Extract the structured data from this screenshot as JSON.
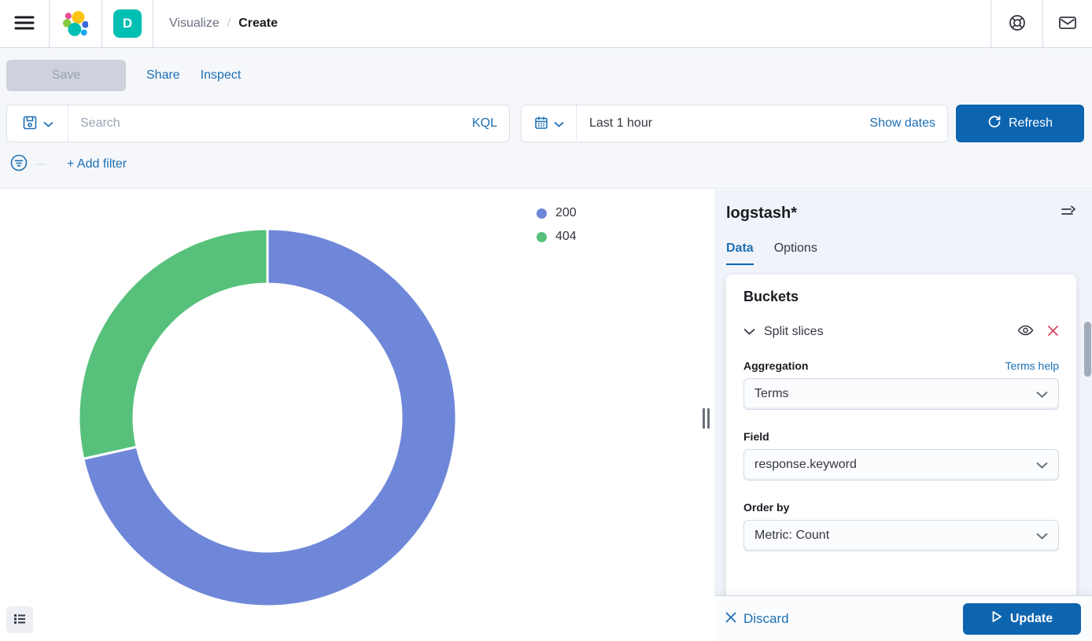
{
  "header": {
    "space_badge": "D",
    "breadcrumb": {
      "section": "Visualize",
      "separator": "/",
      "current": "Create"
    }
  },
  "toolbar": {
    "save_label": "Save",
    "share_label": "Share",
    "inspect_label": "Inspect"
  },
  "query_bar": {
    "search_placeholder": "Search",
    "kql_label": "KQL",
    "time_range": "Last 1 hour",
    "show_dates_label": "Show dates",
    "refresh_label": "Refresh"
  },
  "filter_bar": {
    "dash": "—",
    "add_filter_label": "+ Add filter"
  },
  "chart_data": {
    "type": "pie",
    "subtype": "donut",
    "title": "",
    "series": [
      {
        "label": "200",
        "value": 71.5,
        "color": "#6f87d8"
      },
      {
        "label": "404",
        "value": 28.5,
        "color": "#57c17b"
      }
    ],
    "values_unit": "percent of total (estimated from arc angles; counts not displayed)",
    "start_angle_deg": 0,
    "direction": "clockwise",
    "donut_hole_ratio": 0.71,
    "legend_position": "top-right"
  },
  "panel": {
    "index_pattern": "logstash*",
    "tabs": [
      {
        "label": "Data",
        "active": true
      },
      {
        "label": "Options",
        "active": false
      }
    ],
    "buckets": {
      "title": "Buckets",
      "bucket_label": "Split slices",
      "aggregation_label": "Aggregation",
      "terms_help_label": "Terms help",
      "aggregation_value": "Terms",
      "field_label": "Field",
      "field_value": "response.keyword",
      "order_by_label": "Order by",
      "order_by_value": "Metric: Count"
    },
    "footer": {
      "discard_label": "Discard",
      "update_label": "Update"
    }
  },
  "colors": {
    "primary_button": "#0d64af",
    "link": "#1c6fb4",
    "slice_200": "#6f87d8",
    "slice_404": "#57c17b",
    "space_badge_bg": "#00BFB3",
    "danger_icon": "#d6495f",
    "border": "#d3dae6",
    "subheader_bg": "#f5f7fa",
    "panel_bg": "#f0f3f9"
  }
}
